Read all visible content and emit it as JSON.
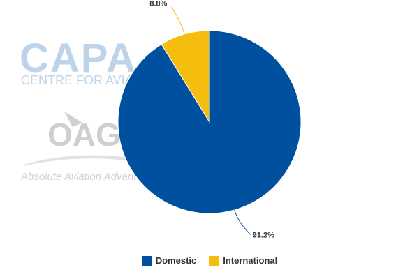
{
  "watermarks": {
    "capa_logo": "CAPA",
    "capa_sub": "CENTRE FOR AVIATION",
    "oag_logo": "OAG",
    "oag_sub": "Absolute Aviation Advantage"
  },
  "chart_data": {
    "type": "pie",
    "title": "",
    "start_angle_deg": 0,
    "direction": "clockwise",
    "slices": [
      {
        "name": "Domestic",
        "value": 91.2,
        "label": "91.2%",
        "color": "#0050A0"
      },
      {
        "name": "International",
        "value": 8.8,
        "label": "8.8%",
        "color": "#F5BE0F"
      }
    ],
    "legend": {
      "position": "bottom-center"
    }
  }
}
